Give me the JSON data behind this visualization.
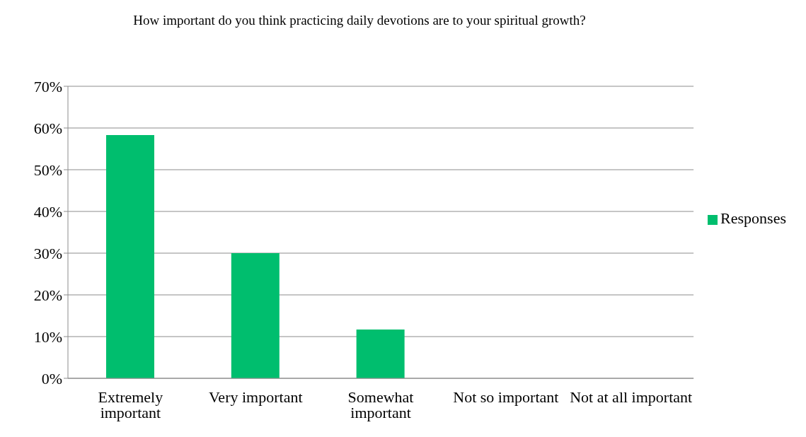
{
  "chart_data": {
    "type": "bar",
    "title": "How important do you think practicing daily devotions are to your spiritual growth?",
    "categories": [
      "Extremely important",
      "Very important",
      "Somewhat important",
      "Not so important",
      "Not at all important"
    ],
    "series": [
      {
        "name": "Responses",
        "color": "#00be6e",
        "values": [
          58.3,
          30,
          11.7,
          0,
          0
        ]
      }
    ],
    "ylim": [
      0,
      70
    ],
    "yticks": [
      {
        "value": 0,
        "label": "0%"
      },
      {
        "value": 10,
        "label": "10%"
      },
      {
        "value": 20,
        "label": "20%"
      },
      {
        "value": 30,
        "label": "30%"
      },
      {
        "value": 40,
        "label": "40%"
      },
      {
        "value": 50,
        "label": "50%"
      },
      {
        "value": 60,
        "label": "60%"
      },
      {
        "value": 70,
        "label": "70%"
      }
    ],
    "grid": "y",
    "legend": "right"
  }
}
